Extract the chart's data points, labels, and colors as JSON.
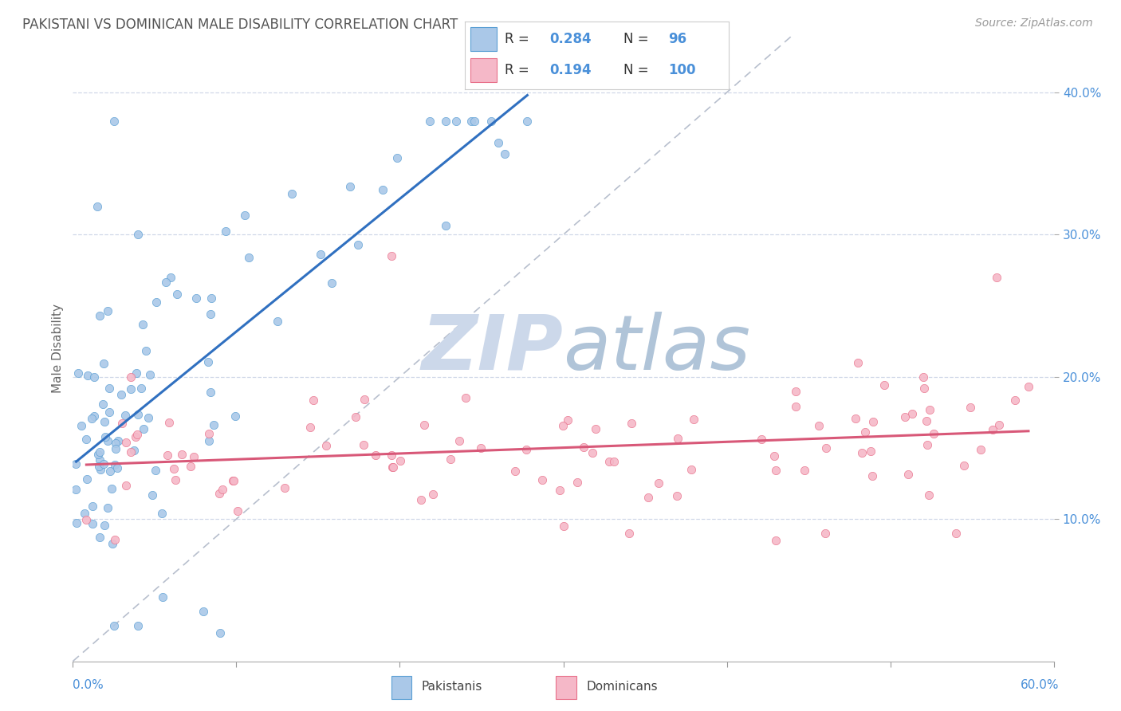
{
  "title": "PAKISTANI VS DOMINICAN MALE DISABILITY CORRELATION CHART",
  "source": "Source: ZipAtlas.com",
  "ylabel": "Male Disability",
  "xlim": [
    0.0,
    0.6
  ],
  "ylim": [
    0.0,
    0.44
  ],
  "y_ticks": [
    0.1,
    0.2,
    0.3,
    0.4
  ],
  "y_tick_labels": [
    "10.0%",
    "20.0%",
    "30.0%",
    "40.0%"
  ],
  "R_pakistani": 0.284,
  "N_pakistani": 96,
  "R_dominican": 0.194,
  "N_dominican": 100,
  "color_pakistani_fill": "#aac8e8",
  "color_dominican_fill": "#f5b8c8",
  "color_pakistani_edge": "#5a9fd4",
  "color_dominican_edge": "#e8708a",
  "color_pakistani_line": "#3070c0",
  "color_dominican_line": "#d85878",
  "color_ref_line": "#b0b8c8",
  "watermark_zip_color": "#ccd8e8",
  "watermark_atlas_color": "#b8ccd8",
  "tick_color": "#4a90d9",
  "label_color": "#666666",
  "legend_text_dark": "#333333",
  "legend_val_color": "#4a90d9",
  "legend_N_color": "#333333",
  "legend_N_val_color": "#4a90d9",
  "bg_color": "#ffffff",
  "grid_color": "#d0d8e8"
}
